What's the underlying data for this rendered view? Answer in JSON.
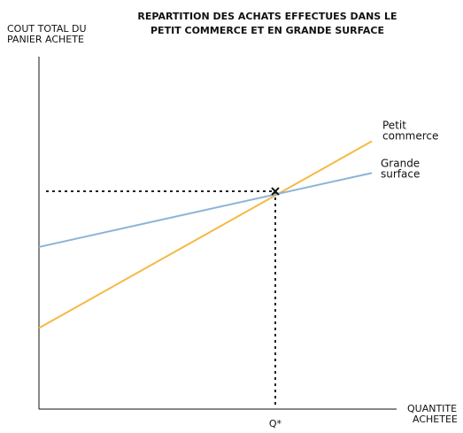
{
  "chart_data": {
    "type": "line",
    "title": [
      "REPARTITION DES ACHATS EFFECTUES DANS LE",
      "PETIT COMMERCE ET EN GRANDE SURFACE"
    ],
    "ylabel": [
      "COUT TOTAL DU",
      "PANIER ACHETE"
    ],
    "xlabel": [
      "QUANTITE",
      "ACHETEE"
    ],
    "x_tick_labels": [
      "Q*"
    ],
    "xlim": [
      0,
      100
    ],
    "ylim": [
      0,
      100
    ],
    "grid": false,
    "series": [
      {
        "name": [
          "Petit",
          "commerce"
        ],
        "color": "#f5b942",
        "x": [
          0,
          100
        ],
        "y": [
          23,
          76
        ]
      },
      {
        "name": [
          "Grande",
          "surface"
        ],
        "color": "#8ab4d8",
        "x": [
          0,
          100
        ],
        "y": [
          46,
          67
        ]
      }
    ],
    "intersection": {
      "label": "Q*",
      "x": 71,
      "y": 61.8,
      "marker": "x",
      "guides": "dotted"
    }
  }
}
